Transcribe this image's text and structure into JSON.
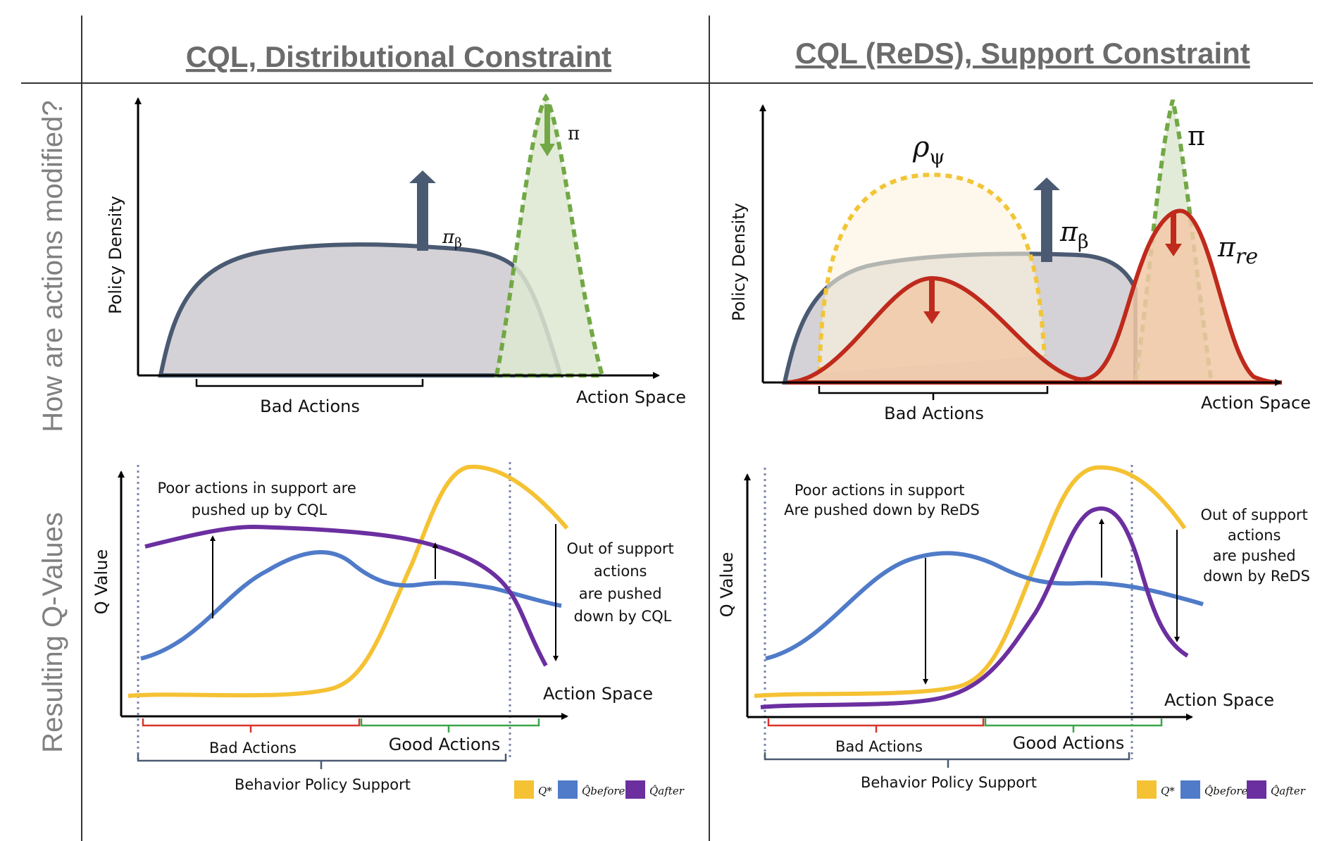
{
  "headers": {
    "left": "CQL, Distributional Constraint",
    "right": "CQL (ReDS), Support Constraint"
  },
  "row_labels": {
    "top": "How are actions modified?",
    "bottom": "Resulting Q-Values"
  },
  "top_left": {
    "y_axis": "Policy Density",
    "x_axis": "Action Space",
    "bad_actions": "Bad Actions",
    "pi": "π",
    "pi_beta_base": "π",
    "pi_beta_sub": "β"
  },
  "top_right": {
    "y_axis": "Policy Density",
    "x_axis": "Action Space",
    "bad_actions": "Bad Actions",
    "pi": "π",
    "rho_base": "ρ",
    "rho_sub": "ψ",
    "pi_beta_base": "π",
    "pi_beta_sub": "β",
    "pi_re_base": "π",
    "pi_re_sub": "re"
  },
  "bottom_left": {
    "y_axis": "Q Value",
    "x_axis": "Action Space",
    "note_in_support": [
      "Poor actions in support are",
      "pushed up by CQL"
    ],
    "note_out_support": [
      "Out of support",
      "actions",
      "are pushed",
      "down by CQL"
    ],
    "bad_actions": "Bad Actions",
    "good_actions": "Good Actions",
    "behavior_support": "Behavior Policy Support"
  },
  "bottom_right": {
    "y_axis": "Q Value",
    "x_axis": "Action Space",
    "note_in_support": [
      "Poor actions in support",
      "Are pushed down by ReDS"
    ],
    "note_out_support": [
      "Out of support",
      "actions",
      "are pushed",
      "down by ReDS"
    ],
    "bad_actions": "Bad Actions",
    "good_actions": "Good Actions",
    "behavior_support": "Behavior Policy Support"
  },
  "legend": {
    "q_star": "Q*",
    "q_before": "Q̂before",
    "q_after": "Q̂after"
  },
  "colors": {
    "behavior": "#4a5a72",
    "behavior_fill": "#d4d2d6",
    "pi_green": "#72a845",
    "pi_green_fill": "#e3eed8",
    "rho_yellow": "#f2c537",
    "rho_fill": "#fcf3dd",
    "pi_re_red": "#bf2a1c",
    "pi_re_fill": "#f2c9a8",
    "q_star": "#f5c234",
    "q_before": "#4f7bc8",
    "q_after": "#6b2fa0",
    "bad_bracket": "#d9342a",
    "good_bracket": "#3aa64a",
    "support_bracket": "#4a5a72",
    "dotted": "#7c86a8"
  }
}
